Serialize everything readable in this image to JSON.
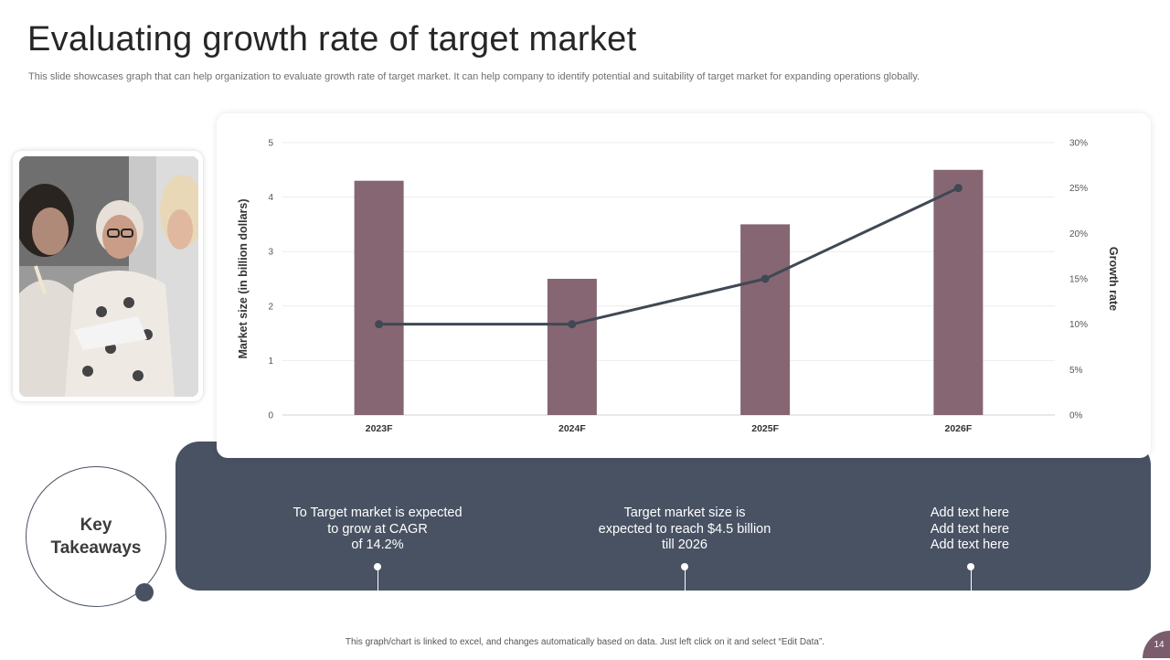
{
  "slide": {
    "title": "Evaluating growth rate of target market",
    "subtitle": "This slide showcases graph that can help organization to evaluate growth rate of target market. It can help company to identify potential and suitability of target market for expanding operations globally.",
    "footer_note": "This graph/chart is linked to excel, and changes automatically based on data. Just left click on it and select “Edit Data”.",
    "page_number": "14"
  },
  "colors": {
    "bar": "#866673",
    "line": "#3f4854",
    "panel": "#485263",
    "page_badge": "#7a5c6c"
  },
  "photo": {
    "alt": "Team of women reviewing documents"
  },
  "chart_data": {
    "type": "bar",
    "categories": [
      "2023F",
      "2024F",
      "2025F",
      "2026F"
    ],
    "series": [
      {
        "name": "Market size (in billion dollars)",
        "type": "bar",
        "axis": "left",
        "values": [
          4.3,
          2.5,
          3.5,
          4.5
        ]
      },
      {
        "name": "Growth rate",
        "type": "line",
        "axis": "right",
        "values": [
          0.1,
          0.1,
          0.15,
          0.25
        ]
      }
    ],
    "ylabel": "Market size (in billion dollars)",
    "y2label": "Growth rate",
    "ylim": [
      0,
      5
    ],
    "y2lim": [
      0,
      0.3
    ],
    "yticks": [
      "0",
      "1",
      "2",
      "3",
      "4",
      "5"
    ],
    "y2ticks": [
      "0%",
      "5%",
      "10%",
      "15%",
      "20%",
      "25%",
      "30%"
    ],
    "grid": true
  },
  "key_takeaways": {
    "heading_line1": "Key",
    "heading_line2": "Takeaways",
    "items": [
      {
        "lines": [
          "To Target market is expected",
          "to grow at CAGR",
          "of 14.2%"
        ]
      },
      {
        "lines": [
          "Target market size is",
          "expected to reach $4.5 billion",
          "till 2026"
        ]
      },
      {
        "lines": [
          "Add text here",
          "Add text here",
          "Add text here"
        ]
      }
    ]
  }
}
